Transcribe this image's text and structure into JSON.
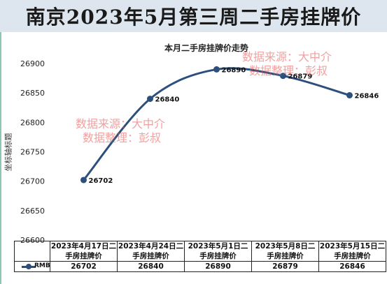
{
  "banner": {
    "title": "南京2023年5月第三周二手房挂牌价"
  },
  "chart_data": {
    "type": "line",
    "title": "本月二手房挂牌价走势",
    "ylabel": "坐标轴标题",
    "xlabel": "",
    "ylim": [
      26600,
      26900
    ],
    "yticks": [
      26600,
      26650,
      26700,
      26750,
      26800,
      26850,
      26900
    ],
    "categories": [
      "2023年4月17日二手房挂牌价",
      "2023年4月24日二手房挂牌价",
      "2023年5月1日二手房挂牌价",
      "2023年5月8日二手房挂牌价",
      "2023年5月15日二手房挂牌价"
    ],
    "series": [
      {
        "name": "RMB",
        "values": [
          26702,
          26840,
          26890,
          26879,
          26846
        ],
        "color": "#2c4f7c"
      }
    ],
    "grid": false,
    "legend": "data-table"
  },
  "watermarks": [
    {
      "line1": "数据来源：大中介",
      "line2": "数据整理：彭叔"
    },
    {
      "line1": "数据来源：大中介",
      "line2": "数据整理：彭叔"
    }
  ]
}
